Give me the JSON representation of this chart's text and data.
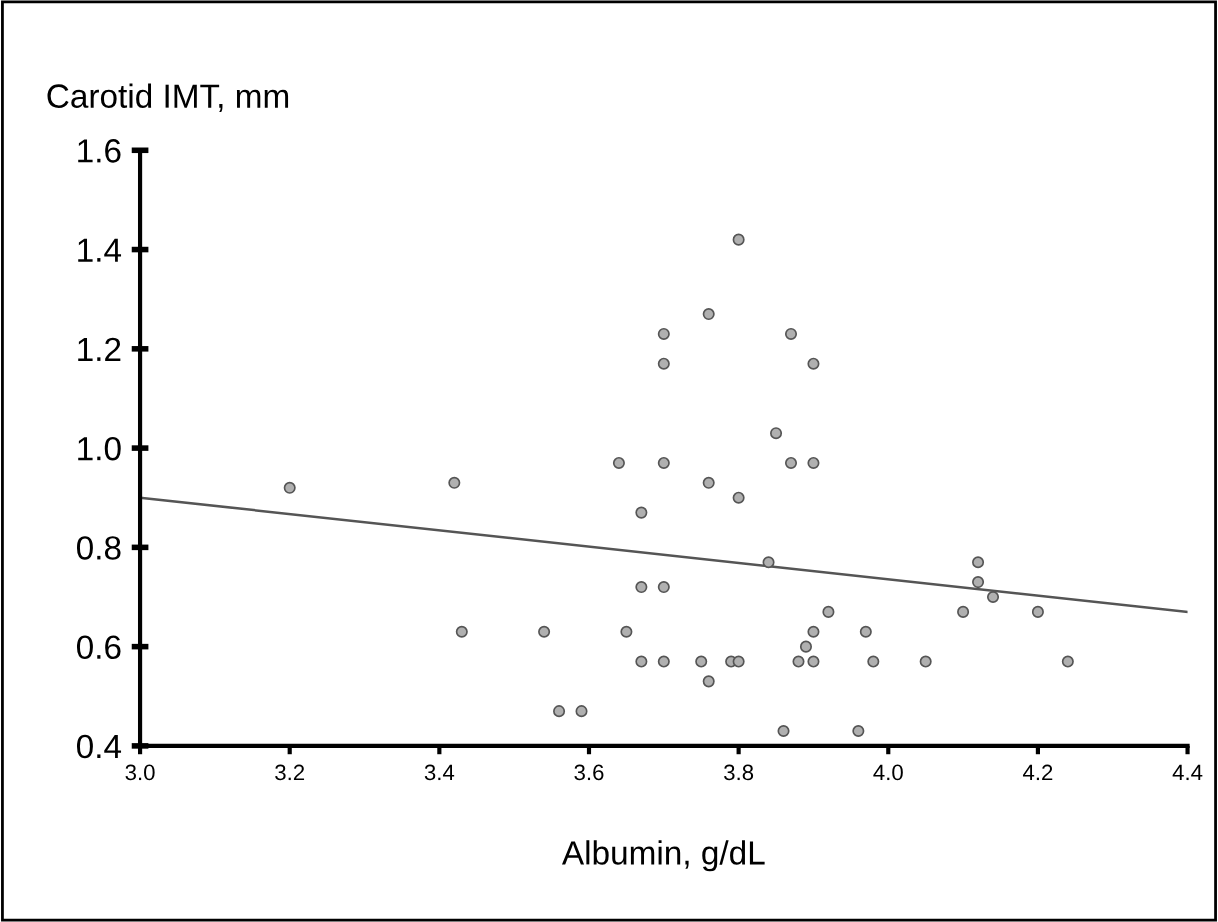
{
  "chart_data": {
    "type": "scatter",
    "xlabel": "Albumin, g/dL",
    "ylabel": "Carotid IMT, mm",
    "xlim": [
      3.0,
      4.4
    ],
    "xticks": [
      {
        "value": 3,
        "label": "3.0"
      },
      3.2,
      3.4,
      3.6,
      3.8,
      {
        "value": 4,
        "label": "4.0"
      },
      4.2,
      4.4
    ],
    "ylim": [
      0.4,
      1.6
    ],
    "yticks": [
      0.4,
      0.6,
      0.8,
      {
        "value": 1,
        "label": "1.0"
      },
      1.2,
      1.4,
      1.6
    ],
    "grid": false,
    "legend": false,
    "series": [
      {
        "color": "#b0b0b0",
        "marker": "circle",
        "x": [
          3.2,
          3.42,
          3.43,
          3.54,
          3.56,
          3.59,
          3.8,
          3.76,
          3.7,
          3.87,
          3.7,
          3.9,
          3.85,
          3.64,
          3.7,
          3.87,
          3.9,
          3.76,
          3.8,
          3.67,
          3.84,
          4.12,
          3.67,
          3.7,
          4.12,
          4.14,
          3.92,
          4.1,
          4.2,
          3.65,
          3.9,
          3.97,
          3.89,
          3.67,
          3.7,
          3.75,
          3.79,
          3.8,
          3.88,
          3.9,
          3.98,
          4.05,
          4.24,
          3.76,
          3.86,
          3.96
        ],
        "values": [
          0.92,
          0.93,
          0.63,
          0.63,
          0.47,
          0.47,
          1.42,
          1.27,
          1.23,
          1.23,
          1.17,
          1.17,
          1.03,
          0.97,
          0.97,
          0.97,
          0.97,
          0.93,
          0.9,
          0.87,
          0.77,
          0.77,
          0.72,
          0.72,
          0.73,
          0.7,
          0.67,
          0.67,
          0.67,
          0.63,
          0.63,
          0.63,
          0.6,
          0.57,
          0.57,
          0.57,
          0.57,
          0.57,
          0.57,
          0.57,
          0.57,
          0.57,
          0.57,
          0.53,
          0.43,
          0.43
        ]
      },
      {
        "type": "line",
        "color": "#555555",
        "x": [
          3.0,
          4.4
        ],
        "values": [
          0.9,
          0.67
        ]
      }
    ]
  }
}
